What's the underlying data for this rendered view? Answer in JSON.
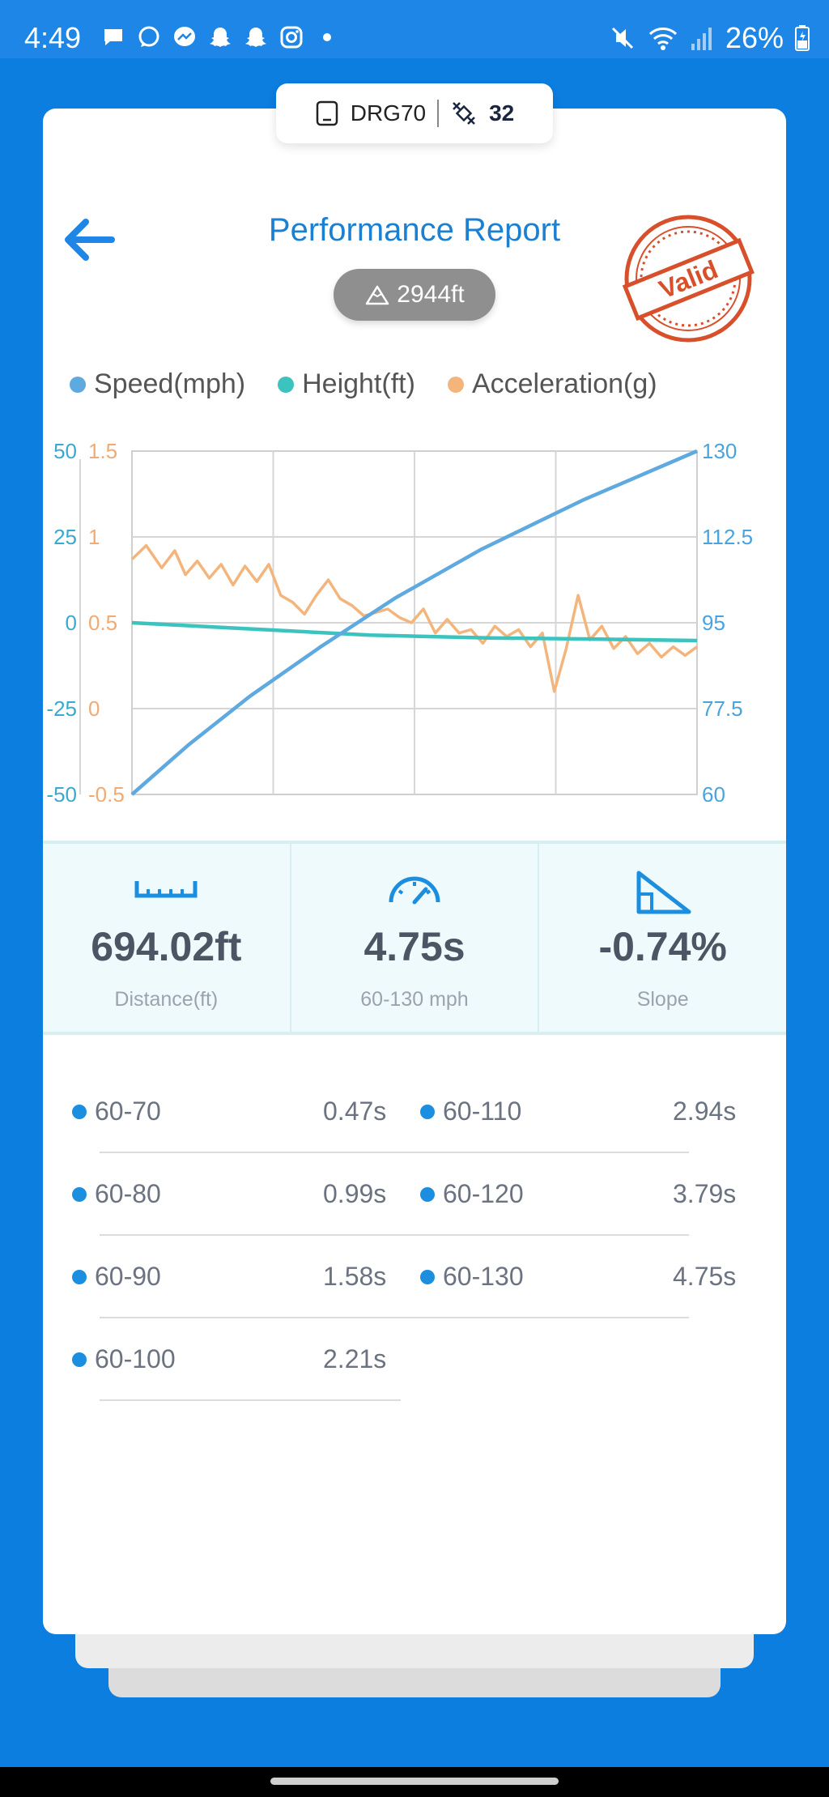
{
  "status_bar": {
    "time": "4:49",
    "battery": "26%",
    "notification_icons": [
      "message-icon",
      "whatsapp-icon",
      "messenger-icon",
      "snapchat-icon",
      "snapchat-icon",
      "instagram-icon",
      "dot-icon"
    ]
  },
  "device": {
    "name": "DRG70",
    "satellites": "32"
  },
  "header": {
    "title": "Performance Report",
    "altitude": "2944ft",
    "stamp_text": "Valid"
  },
  "chart_data": {
    "type": "line",
    "legend": [
      "Speed(mph)",
      "Height(ft)",
      "Acceleration(g)"
    ],
    "colors": {
      "speed": "#5ea9e0",
      "height": "#3cc3c0",
      "acceleration": "#f4b57d"
    },
    "left_axis_height": {
      "ticks": [
        "50",
        "25",
        "0",
        "-25",
        "-50"
      ],
      "range": [
        -50,
        50
      ]
    },
    "left_axis_accel": {
      "ticks": [
        "1.5",
        "1",
        "0.5",
        "0",
        "-0.5"
      ],
      "range": [
        -0.5,
        1.5
      ]
    },
    "right_axis_speed": {
      "ticks": [
        "130",
        "112.5",
        "95",
        "77.5",
        "60"
      ],
      "range": [
        60,
        130
      ]
    },
    "x_range": [
      0,
      4.75
    ],
    "series": [
      {
        "name": "Speed(mph)",
        "axis": "right",
        "x": [
          0,
          0.47,
          0.99,
          1.58,
          2.21,
          2.94,
          3.79,
          4.75
        ],
        "y": [
          60,
          70,
          80,
          90,
          100,
          110,
          120,
          130
        ]
      },
      {
        "name": "Height(ft)",
        "axis": "left_height",
        "x": [
          0,
          1,
          2,
          3,
          4,
          4.75
        ],
        "y": [
          0,
          -1.8,
          -3.6,
          -4.4,
          -4.8,
          -5.2
        ]
      },
      {
        "name": "Acceleration(g)",
        "axis": "left_accel",
        "x": [
          0,
          0.12,
          0.25,
          0.36,
          0.45,
          0.55,
          0.65,
          0.75,
          0.85,
          0.95,
          1.05,
          1.15,
          1.25,
          1.35,
          1.45,
          1.55,
          1.65,
          1.75,
          1.85,
          1.95,
          2.05,
          2.15,
          2.25,
          2.35,
          2.45,
          2.55,
          2.65,
          2.75,
          2.85,
          2.95,
          3.05,
          3.15,
          3.25,
          3.35,
          3.45,
          3.55,
          3.65,
          3.75,
          3.85,
          3.95,
          4.05,
          4.15,
          4.25,
          4.35,
          4.45,
          4.55,
          4.65,
          4.75
        ],
        "y": [
          0.87,
          0.95,
          0.82,
          0.92,
          0.78,
          0.86,
          0.76,
          0.84,
          0.72,
          0.83,
          0.74,
          0.84,
          0.66,
          0.62,
          0.55,
          0.66,
          0.75,
          0.64,
          0.6,
          0.54,
          0.56,
          0.58,
          0.53,
          0.5,
          0.58,
          0.44,
          0.52,
          0.44,
          0.46,
          0.38,
          0.48,
          0.42,
          0.46,
          0.36,
          0.44,
          0.1,
          0.35,
          0.66,
          0.4,
          0.48,
          0.35,
          0.42,
          0.32,
          0.38,
          0.3,
          0.36,
          0.31,
          0.36
        ]
      }
    ]
  },
  "stats": {
    "distance": {
      "value": "694.02ft",
      "label": "Distance(ft)"
    },
    "time": {
      "value": "4.75s",
      "label": "60-130 mph"
    },
    "slope": {
      "value": "-0.74%",
      "label": "Slope"
    }
  },
  "splits": {
    "left": [
      {
        "label": "60-70",
        "value": "0.47s"
      },
      {
        "label": "60-80",
        "value": "0.99s"
      },
      {
        "label": "60-90",
        "value": "1.58s"
      },
      {
        "label": "60-100",
        "value": "2.21s"
      }
    ],
    "right": [
      {
        "label": "60-110",
        "value": "2.94s"
      },
      {
        "label": "60-120",
        "value": "3.79s"
      },
      {
        "label": "60-130",
        "value": "4.75s"
      }
    ]
  }
}
